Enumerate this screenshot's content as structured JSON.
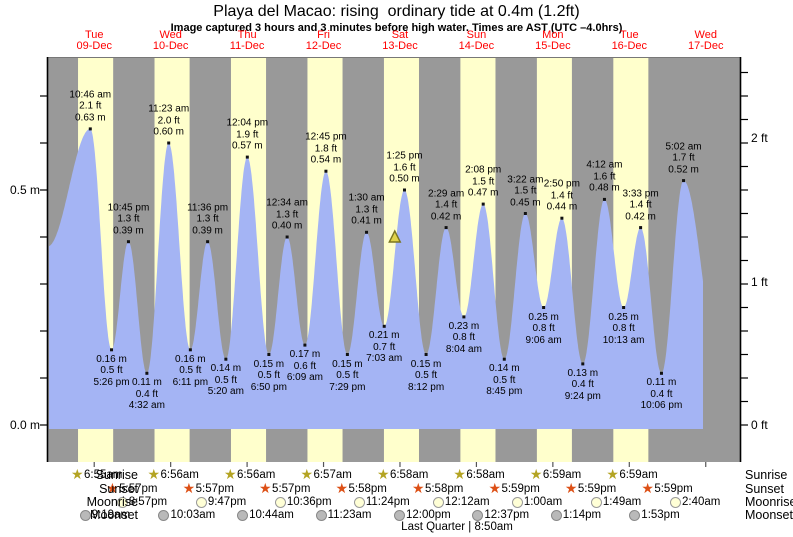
{
  "title": "Playa del Macao: rising  ordinary tide at 0.4m (1.2ft)",
  "subtitle": "Image captured 3 hours and 3 minutes before high water. Times are AST (UTC –4.0hrs)",
  "days": [
    {
      "dow": "Tue",
      "date": "09-Dec"
    },
    {
      "dow": "Wed",
      "date": "10-Dec"
    },
    {
      "dow": "Thu",
      "date": "11-Dec"
    },
    {
      "dow": "Fri",
      "date": "12-Dec"
    },
    {
      "dow": "Sat",
      "date": "13-Dec"
    },
    {
      "dow": "Sun",
      "date": "14-Dec"
    },
    {
      "dow": "Mon",
      "date": "15-Dec"
    },
    {
      "dow": "Tue",
      "date": "16-Dec"
    },
    {
      "dow": "Wed",
      "date": "17-Dec"
    }
  ],
  "chart_data": {
    "type": "area",
    "x_axis": "time, Dec 9 - Dec 17, one column per day, yellow=daylight gray=night",
    "ylim_m": [
      -0.09,
      0.78
    ],
    "left_ticks": [
      {
        "label": "0.5 m",
        "m": 0.5
      },
      {
        "label": "0.0 m",
        "m": 0.0
      }
    ],
    "right_ticks": [
      {
        "label": "2 ft",
        "m": 0.6096
      },
      {
        "label": "1 ft",
        "m": 0.3048
      },
      {
        "label": "0 ft",
        "m": 0.0
      }
    ],
    "extremes": [
      {
        "day": 0,
        "type": "high",
        "time": "10:46 am",
        "ft": "2.1 ft",
        "m": "0.63 m",
        "height_m": 0.63
      },
      {
        "day": 0,
        "type": "low",
        "time": "5:26 pm",
        "ft": "0.5 ft",
        "m": "0.16 m",
        "height_m": 0.16
      },
      {
        "day": 0,
        "type": "high",
        "time": "10:45 pm",
        "ft": "1.3 ft",
        "m": "0.39 m",
        "height_m": 0.39
      },
      {
        "day": 1,
        "type": "low",
        "time": "4:32 am",
        "ft": "0.4 ft",
        "m": "0.11 m",
        "height_m": 0.11
      },
      {
        "day": 1,
        "type": "high",
        "time": "11:23 am",
        "ft": "2.0 ft",
        "m": "0.60 m",
        "height_m": 0.6
      },
      {
        "day": 1,
        "type": "low",
        "time": "6:11 pm",
        "ft": "0.5 ft",
        "m": "0.16 m",
        "height_m": 0.16
      },
      {
        "day": 1,
        "type": "high",
        "time": "11:36 pm",
        "ft": "1.3 ft",
        "m": "0.39 m",
        "height_m": 0.39
      },
      {
        "day": 2,
        "type": "low",
        "time": "5:20 am",
        "ft": "0.5 ft",
        "m": "0.14 m",
        "height_m": 0.14
      },
      {
        "day": 2,
        "type": "high",
        "time": "12:04 pm",
        "ft": "1.9 ft",
        "m": "0.57 m",
        "height_m": 0.57
      },
      {
        "day": 2,
        "type": "low",
        "time": "6:50 pm",
        "ft": "0.5 ft",
        "m": "0.15 m",
        "height_m": 0.15
      },
      {
        "day": 3,
        "type": "high",
        "time": "12:34 am",
        "ft": "1.3 ft",
        "m": "0.40 m",
        "height_m": 0.4
      },
      {
        "day": 3,
        "type": "low",
        "time": "6:09 am",
        "ft": "0.6 ft",
        "m": "0.17 m",
        "height_m": 0.17
      },
      {
        "day": 3,
        "type": "high",
        "time": "12:45 pm",
        "ft": "1.8 ft",
        "m": "0.54 m",
        "height_m": 0.54
      },
      {
        "day": 3,
        "type": "low",
        "time": "7:29 pm",
        "ft": "0.5 ft",
        "m": "0.15 m",
        "height_m": 0.15
      },
      {
        "day": 4,
        "type": "high",
        "time": "1:30 am",
        "ft": "1.3 ft",
        "m": "0.41 m",
        "height_m": 0.41
      },
      {
        "day": 4,
        "type": "low",
        "time": "7:03 am",
        "ft": "0.7 ft",
        "m": "0.21 m",
        "height_m": 0.21
      },
      {
        "day": 4,
        "type": "high",
        "time": "1:25 pm",
        "ft": "1.6 ft",
        "m": "0.50 m",
        "height_m": 0.5
      },
      {
        "day": 4,
        "type": "low",
        "time": "8:12 pm",
        "ft": "0.5 ft",
        "m": "0.15 m",
        "height_m": 0.15
      },
      {
        "day": 5,
        "type": "high",
        "time": "2:29 am",
        "ft": "1.4 ft",
        "m": "0.42 m",
        "height_m": 0.42
      },
      {
        "day": 5,
        "type": "low",
        "time": "8:04 am",
        "ft": "0.8 ft",
        "m": "0.23 m",
        "height_m": 0.23
      },
      {
        "day": 5,
        "type": "high",
        "time": "2:08 pm",
        "ft": "1.5 ft",
        "m": "0.47 m",
        "height_m": 0.47
      },
      {
        "day": 5,
        "type": "low",
        "time": "8:45 pm",
        "ft": "0.5 ft",
        "m": "0.14 m",
        "height_m": 0.14
      },
      {
        "day": 6,
        "type": "high",
        "time": "3:22 am",
        "ft": "1.5 ft",
        "m": "0.45 m",
        "height_m": 0.45
      },
      {
        "day": 6,
        "type": "low",
        "time": "9:06 am",
        "ft": "0.8 ft",
        "m": "0.25 m",
        "height_m": 0.25
      },
      {
        "day": 6,
        "type": "high",
        "time": "2:50 pm",
        "ft": "1.4 ft",
        "m": "0.44 m",
        "height_m": 0.44
      },
      {
        "day": 6,
        "type": "low",
        "time": "9:24 pm",
        "ft": "0.4 ft",
        "m": "0.13 m",
        "height_m": 0.13
      },
      {
        "day": 7,
        "type": "high",
        "time": "4:12 am",
        "ft": "1.6 ft",
        "m": "0.48 m",
        "height_m": 0.48
      },
      {
        "day": 7,
        "type": "low",
        "time": "10:13 am",
        "ft": "0.8 ft",
        "m": "0.25 m",
        "height_m": 0.25
      },
      {
        "day": 7,
        "type": "high",
        "time": "3:33 pm",
        "ft": "1.4 ft",
        "m": "0.42 m",
        "height_m": 0.42
      },
      {
        "day": 7,
        "type": "low",
        "time": "10:06 pm",
        "ft": "0.4 ft",
        "m": "0.11 m",
        "height_m": 0.11
      },
      {
        "day": 8,
        "type": "high",
        "time": "5:02 am",
        "ft": "1.7 ft",
        "m": "0.52 m",
        "height_m": 0.52
      }
    ],
    "current_marker": {
      "day": 4,
      "time": "10:22 am",
      "height_m": 0.4
    }
  },
  "sun_moon": {
    "row_labels": {
      "sunrise": "Sunrise",
      "sunset": "Sunset",
      "moonrise": "Moonrise",
      "moonset": "Moonset"
    },
    "sunrise": [
      {
        "day": 0,
        "time": "6:55am"
      },
      {
        "day": 1,
        "time": "6:56am"
      },
      {
        "day": 2,
        "time": "6:56am"
      },
      {
        "day": 3,
        "time": "6:57am"
      },
      {
        "day": 4,
        "time": "6:58am"
      },
      {
        "day": 5,
        "time": "6:58am"
      },
      {
        "day": 6,
        "time": "6:59am"
      },
      {
        "day": 7,
        "time": "6:59am"
      }
    ],
    "sunset": [
      {
        "day": 0,
        "time": "5:57pm"
      },
      {
        "day": 1,
        "time": "5:57pm"
      },
      {
        "day": 2,
        "time": "5:57pm"
      },
      {
        "day": 3,
        "time": "5:58pm"
      },
      {
        "day": 4,
        "time": "5:58pm"
      },
      {
        "day": 5,
        "time": "5:59pm"
      },
      {
        "day": 6,
        "time": "5:59pm"
      },
      {
        "day": 7,
        "time": "5:59pm"
      }
    ],
    "moonrise": [
      {
        "day": 0,
        "time": "8:57pm"
      },
      {
        "day": 1,
        "time": "9:47pm"
      },
      {
        "day": 2,
        "time": "10:36pm"
      },
      {
        "day": 3,
        "time": "11:24pm"
      },
      {
        "day": 5,
        "time": "12:12am"
      },
      {
        "day": 6,
        "time": "1:00am"
      },
      {
        "day": 7,
        "time": "1:49am"
      },
      {
        "day": 8,
        "time": "2:40am"
      }
    ],
    "moonset": [
      {
        "day": 0,
        "time": "9:19am"
      },
      {
        "day": 1,
        "time": "10:03am"
      },
      {
        "day": 2,
        "time": "10:44am"
      },
      {
        "day": 3,
        "time": "11:23am"
      },
      {
        "day": 4,
        "time": "12:00pm"
      },
      {
        "day": 5,
        "time": "12:37pm"
      },
      {
        "day": 6,
        "time": "1:14pm"
      },
      {
        "day": 7,
        "time": "1:53pm"
      }
    ],
    "moon_phase": "Last Quarter | 8:50am"
  },
  "colors": {
    "night_band": "#999999",
    "day_band": "#ffffcc",
    "tide_fill": "#a4b4f4",
    "day_label": "#ff0000",
    "sunrise_star": "#b4a423",
    "sunset_star": "#dd5016",
    "moonrise_circle": "#ffffd6",
    "moonset_circle": "#b9b9b9",
    "marker_fill": "#e0d34a",
    "marker_stroke": "#7a7520"
  }
}
